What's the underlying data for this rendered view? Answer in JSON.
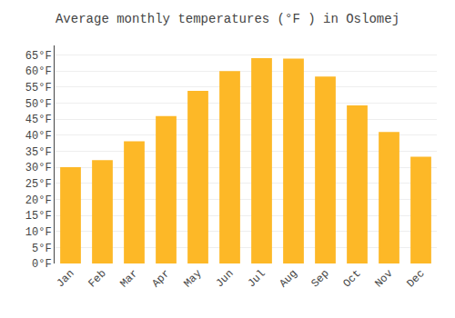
{
  "chart_data": {
    "type": "bar",
    "title": "Average monthly temperatures (°F ) in Oslomej",
    "categories": [
      "Jan",
      "Feb",
      "Mar",
      "Apr",
      "May",
      "Jun",
      "Jul",
      "Aug",
      "Sep",
      "Oct",
      "Nov",
      "Dec"
    ],
    "values": [
      30.0,
      32.2,
      38.1,
      46.0,
      53.8,
      60.0,
      64.0,
      63.9,
      58.3,
      49.3,
      41.0,
      33.3
    ],
    "color": "#FDB827",
    "ylim": [
      0,
      68
    ],
    "yticks": [
      {
        "value": 0,
        "label": "0°F"
      },
      {
        "value": 5,
        "label": "5°F"
      },
      {
        "value": 10,
        "label": "10°F"
      },
      {
        "value": 15,
        "label": "15°F"
      },
      {
        "value": 20,
        "label": "20°F"
      },
      {
        "value": 25,
        "label": "25°F"
      },
      {
        "value": 30,
        "label": "30°F"
      },
      {
        "value": 35,
        "label": "35°F"
      },
      {
        "value": 40,
        "label": "40°F"
      },
      {
        "value": 45,
        "label": "45°F"
      },
      {
        "value": 50,
        "label": "50°F"
      },
      {
        "value": 55,
        "label": "55°F"
      },
      {
        "value": 60,
        "label": "60°F"
      },
      {
        "value": 65,
        "label": "65°F"
      }
    ],
    "grid": true
  }
}
